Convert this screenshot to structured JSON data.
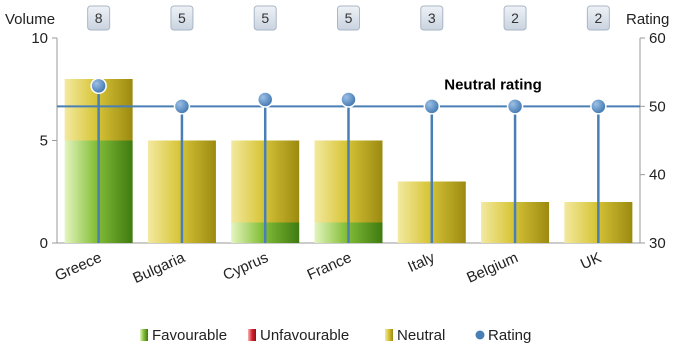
{
  "chart_data": {
    "type": "bar",
    "categories": [
      "Greece",
      "Bulgaria",
      "Cyprus",
      "France",
      "Italy",
      "Belgium",
      "UK"
    ],
    "counts": [
      "8",
      "5",
      "5",
      "5",
      "3",
      "2",
      "2"
    ],
    "series": [
      {
        "name": "Favourable",
        "values": [
          5,
          0,
          1,
          1,
          0,
          0,
          0
        ],
        "color": "#6aa51c"
      },
      {
        "name": "Unfavourable",
        "values": [
          0,
          0,
          0,
          0,
          0,
          0,
          0
        ],
        "color": "#d9232e"
      },
      {
        "name": "Neutral",
        "values": [
          3,
          5,
          4,
          4,
          3,
          2,
          2
        ],
        "color": "#c9b21a"
      },
      {
        "name": "Rating",
        "type": "line",
        "axis": "right",
        "values": [
          53,
          50,
          51,
          51,
          50,
          50,
          50
        ],
        "color": "#4a7fb5"
      }
    ],
    "ylabel": "Volume",
    "y2label": "Rating",
    "ylim": [
      0,
      10
    ],
    "y2lim": [
      30,
      60
    ],
    "yticks": [
      "0",
      "5",
      "10"
    ],
    "y2ticks": [
      "30",
      "40",
      "50",
      "60"
    ],
    "reference_line": {
      "label": "Neutral rating",
      "value": 50,
      "axis": "right"
    },
    "legend": {
      "position": "bottom",
      "items": [
        {
          "label": "Favourable",
          "color": "#6aa51c"
        },
        {
          "label": "Unfavourable",
          "color": "#d9232e"
        },
        {
          "label": "Neutral",
          "color": "#c9b21a"
        },
        {
          "label": "Rating",
          "color": "#4a7fb5"
        }
      ]
    }
  }
}
